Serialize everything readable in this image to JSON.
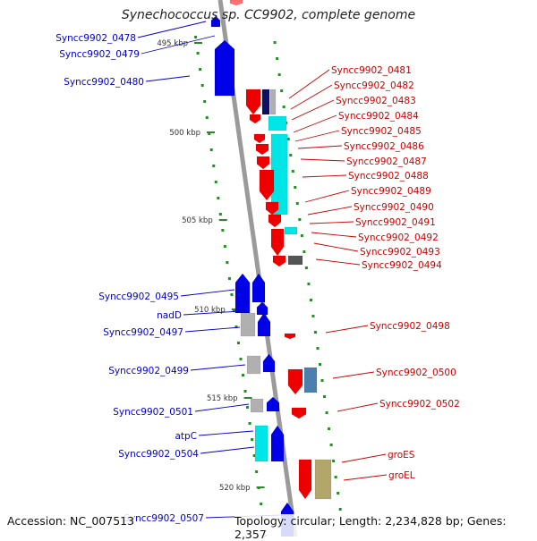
{
  "title": "Synechococcus sp. CC9902, complete genome",
  "footer": {
    "accession": "Accession: NC_007513",
    "topology": "Topology: circular; Length: 2,234,828 bp; Genes: 2,357"
  },
  "colors": {
    "backbone": "#9a9a9a",
    "ticks": "#2a8a2a",
    "left_labels": "#0000cc",
    "right_labels": "#cc0000",
    "forward_gene": "#0000e8",
    "reverse_gene": "#ee0000",
    "rna_cyan": "#00e6e6",
    "hypothetical_gray": "#b0b0b0",
    "dark_navy": "#101060",
    "steel_blue": "#4a7fb0",
    "olive": "#b3a66a"
  },
  "scale_ticks": [
    "495 kbp",
    "500 kbp",
    "505 kbp",
    "510 kbp",
    "515 kbp",
    "520 kbp"
  ],
  "left_labels": [
    "Syncc9902_0478",
    "Syncc9902_0479",
    "Syncc9902_0480",
    "Syncc9902_0495",
    "nadD",
    "Syncc9902_0497",
    "Syncc9902_0499",
    "Syncc9902_0501",
    "atpC",
    "Syncc9902_0504",
    "Syncc9902_0507"
  ],
  "right_labels": [
    "Syncc9902_0481",
    "Syncc9902_0482",
    "Syncc9902_0483",
    "Syncc9902_0484",
    "Syncc9902_0485",
    "Syncc9902_0486",
    "Syncc9902_0487",
    "Syncc9902_0488",
    "Syncc9902_0489",
    "Syncc9902_0490",
    "Syncc9902_0491",
    "Syncc9902_0492",
    "Syncc9902_0493",
    "Syncc9902_0494",
    "Syncc9902_0498",
    "Syncc9902_0500",
    "Syncc9902_0502",
    "groES",
    "groEL"
  ]
}
